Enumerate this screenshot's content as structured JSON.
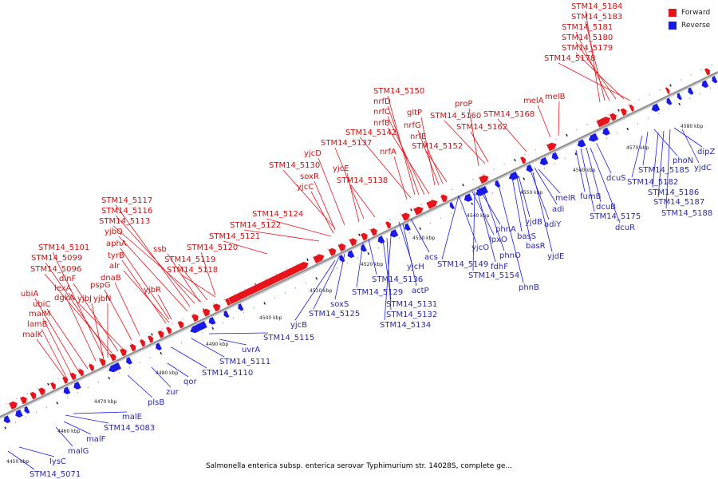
{
  "colors": {
    "forward": "#e8141b",
    "reverse": "#1a1ae6",
    "backbone": "#8f8f8f",
    "label_forward": "#cc1111",
    "label_reverse": "#2a2aaa"
  },
  "legend": {
    "forward_label": "Forward",
    "reverse_label": "Reverse"
  },
  "caption": "Salmonella enterica subsp. enterica serovar Typhimurium str. 14028S, complete ge...",
  "axis": {
    "ticks": [
      "4450 kbp",
      "4460 kbp",
      "4470 kbp",
      "4480 kbp",
      "4490 kbp",
      "4500 kbp",
      "4510 kbp",
      "4520 kbp",
      "4530 kbp",
      "4540 kbp",
      "4550 kbp",
      "4560 kbp",
      "4570 kbp",
      "4580 kbp"
    ]
  },
  "forward_genes": [
    "STM14_5184",
    "STM14_5183",
    "STM14_5181",
    "STM14_5180",
    "STM14_5179",
    "STM14_5178",
    "melB",
    "melA",
    "STM14_5168",
    "proP",
    "STM14_5160",
    "STM14_5162",
    "STM14_5150",
    "nrfD",
    "nrfC",
    "nrfB",
    "gltP",
    "nrfG",
    "nrfE",
    "STM14_5142",
    "STM14_5152",
    "nrfA",
    "STM14_5137",
    "yjcD",
    "STM14_5130",
    "yjcE",
    "soxR",
    "yjcC",
    "STM14_5138",
    "STM14_5117",
    "STM14_5116",
    "STM14_5113",
    "yjbQ",
    "aphA",
    "STM14_5124",
    "STM14_5122",
    "STM14_5121",
    "STM14_5120",
    "ssb",
    "tyrB",
    "STM14_5119",
    "alr",
    "STM14_5118",
    "STM14_5101",
    "STM14_5099",
    "STM14_5096",
    "dinF",
    "lexA",
    "ubiA",
    "ubiC",
    "malM",
    "lamB",
    "malK",
    "dgkA",
    "yjbJ",
    "yjbN",
    "pspG",
    "dnaB",
    "yjbR"
  ],
  "reverse_genes": [
    "phoN",
    "dipZ",
    "STM14_5185",
    "yjdC",
    "STM14_5182",
    "dcuS",
    "STM14_5186",
    "STM14_5187",
    "STM14_5188",
    "fumB",
    "dcuB",
    "STM14_5175",
    "dcuR",
    "melR",
    "adi",
    "adiY",
    "yjdB",
    "basS",
    "basR",
    "yjdE",
    "phnA",
    "yjcO",
    "lpxO",
    "phnO",
    "fdhF",
    "STM14_5149",
    "STM14_5154",
    "phnB",
    "acs",
    "yjcH",
    "actP",
    "STM14_5136",
    "STM14_5129",
    "STM14_5131",
    "STM14_5132",
    "STM14_5134",
    "soxS",
    "STM14_5125",
    "yjcB",
    "STM14_5115",
    "uvrA",
    "STM14_5111",
    "STM14_5110",
    "qor",
    "zur",
    "plsB",
    "malE",
    "STM14_5083",
    "malF",
    "malG",
    "lysC",
    "STM14_5071"
  ]
}
